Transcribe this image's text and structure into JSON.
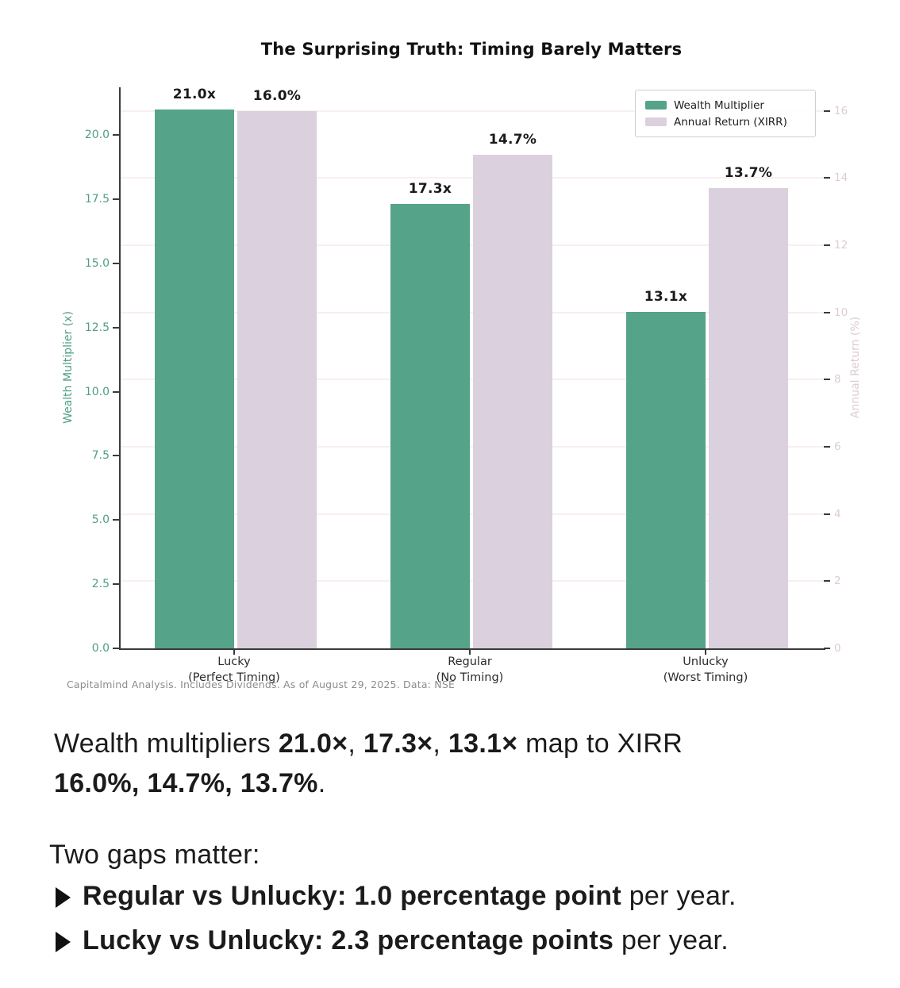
{
  "title": "The Surprising Truth: Timing Barely Matters",
  "caption": "Capitalmind Analysis. Includes Dividends. As of August 29, 2025. Data: NSE",
  "colors": {
    "wealth_green": "#55a389",
    "xirr_lavender": "#dbd0dd",
    "left_axis_text": "#4f9e85",
    "right_axis_text": "#ddccd3",
    "grid": "#f8eff2",
    "spine": "#3a3a3a",
    "caption_gray": "#8c8c8c",
    "body_text": "#1b1b1b"
  },
  "chart_data": {
    "type": "bar",
    "title": "The Surprising Truth: Timing Barely Matters",
    "categories": [
      "Lucky\n(Perfect Timing)",
      "Regular\n(No Timing)",
      "Unlucky\n(Worst Timing)"
    ],
    "series": [
      {
        "name": "Wealth Multiplier",
        "axis": "left",
        "values": [
          21.0,
          17.3,
          13.1
        ],
        "bar_labels": [
          "21.0x",
          "17.3x",
          "13.1x"
        ],
        "color": "#55a389"
      },
      {
        "name": "Annual Return (XIRR)",
        "axis": "right",
        "values": [
          16.0,
          14.7,
          13.7
        ],
        "bar_labels": [
          "16.0%",
          "14.7%",
          "13.7%"
        ],
        "color": "#dbd0dd"
      }
    ],
    "left_axis": {
      "label": "Wealth Multiplier (x)",
      "ticks": [
        0.0,
        2.5,
        5.0,
        7.5,
        10.0,
        12.5,
        15.0,
        17.5,
        20.0
      ],
      "tick_labels": [
        "0.0",
        "2.5",
        "5.0",
        "7.5",
        "10.0",
        "12.5",
        "15.0",
        "17.5",
        "20.0"
      ],
      "ylim": [
        0,
        21.86
      ],
      "color": "#4f9e85"
    },
    "right_axis": {
      "label": "Annual Return (%)",
      "ticks": [
        0,
        2,
        4,
        6,
        8,
        10,
        12,
        14,
        16
      ],
      "tick_labels": [
        "0",
        "2",
        "4",
        "6",
        "8",
        "10",
        "12",
        "14",
        "16"
      ],
      "ylim": [
        0,
        16.7
      ],
      "color": "#ddccd3"
    },
    "legend": {
      "position": "upper right",
      "entries": [
        "Wealth Multiplier",
        "Annual Return (XIRR)"
      ]
    },
    "grid": {
      "horizontal": true,
      "color": "#f8eff2"
    }
  },
  "text": {
    "para1": [
      {
        "t": "Wealth multipliers "
      },
      {
        "t": "21.0×",
        "b": true
      },
      {
        "t": ", "
      },
      {
        "t": "17.3×",
        "b": true
      },
      {
        "t": ", "
      },
      {
        "t": "13.1×",
        "b": true
      },
      {
        "t": " map to XIRR"
      },
      {
        "br": true
      },
      {
        "t": "16.0%, 14.7%, 13.7%",
        "b": true
      },
      {
        "t": "."
      }
    ],
    "gaps_heading": "Two gaps matter:",
    "bullets": [
      {
        "segments": [
          {
            "t": "Regular vs Unlucky: 1.0 percentage point",
            "b": true
          },
          {
            "t": " per year."
          }
        ]
      },
      {
        "segments": [
          {
            "t": "Lucky vs Unlucky: 2.3 percentage points",
            "b": true
          },
          {
            "t": " per year."
          }
        ]
      }
    ]
  }
}
